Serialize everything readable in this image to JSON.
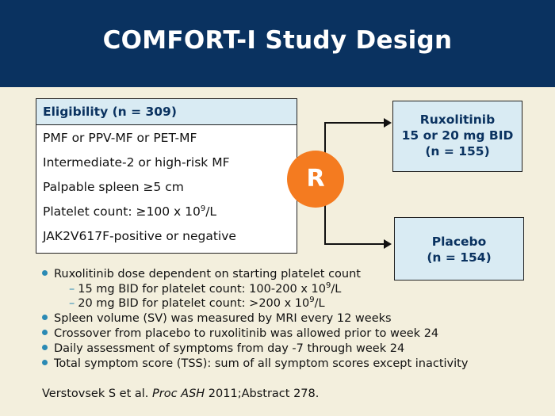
{
  "title": "COMFORT-I Study Design",
  "eligibility": {
    "header": "Eligibility (n = 309)",
    "criteria": {
      "c1": "PMF or PPV-MF or PET-MF",
      "c2": "Intermediate-2 or high-risk MF",
      "c3": "Palpable spleen ≥5 cm",
      "c4_prefix": "Platelet count: ≥100 x 10",
      "c4_sup": "9",
      "c4_suffix": "/L",
      "c5": "JAK2V617F-positive or negative"
    }
  },
  "randomization_label": "R",
  "arms": {
    "ruxolitinib": {
      "line1": "Ruxolitinib",
      "line2": "15 or 20 mg BID",
      "line3": "(n = 155)"
    },
    "placebo": {
      "line1": "Placebo",
      "line2": "(n = 154)"
    }
  },
  "bullets": {
    "b1": "Ruxolitinib dose dependent on starting platelet count",
    "sub1_prefix": "15 mg BID for platelet count: 100-200 x 10",
    "sub1_sup": "9",
    "sub1_suffix": "/L",
    "sub2_prefix": "20 mg BID for platelet count: >200 x 10",
    "sub2_sup": "9",
    "sub2_suffix": "/L",
    "b2": "Spleen volume (SV) was measured by MRI every 12 weeks",
    "b3": "Crossover from placebo to ruxolitinib was allowed prior to week 24",
    "b4": "Daily assessment of symptoms from day -7 through week 24",
    "b5": "Total symptom score (TSS): sum of all symptom scores except inactivity"
  },
  "citation": {
    "author": "Verstovsek S et al. ",
    "journal": "Proc ASH",
    "rest": " 2011;Abstract 278."
  },
  "colors": {
    "header_bg": "#0a3260",
    "background": "#f3efdd",
    "box_fill": "#d9ebf3",
    "randomization": "#f47b20",
    "bullet": "#2a8ab4"
  }
}
